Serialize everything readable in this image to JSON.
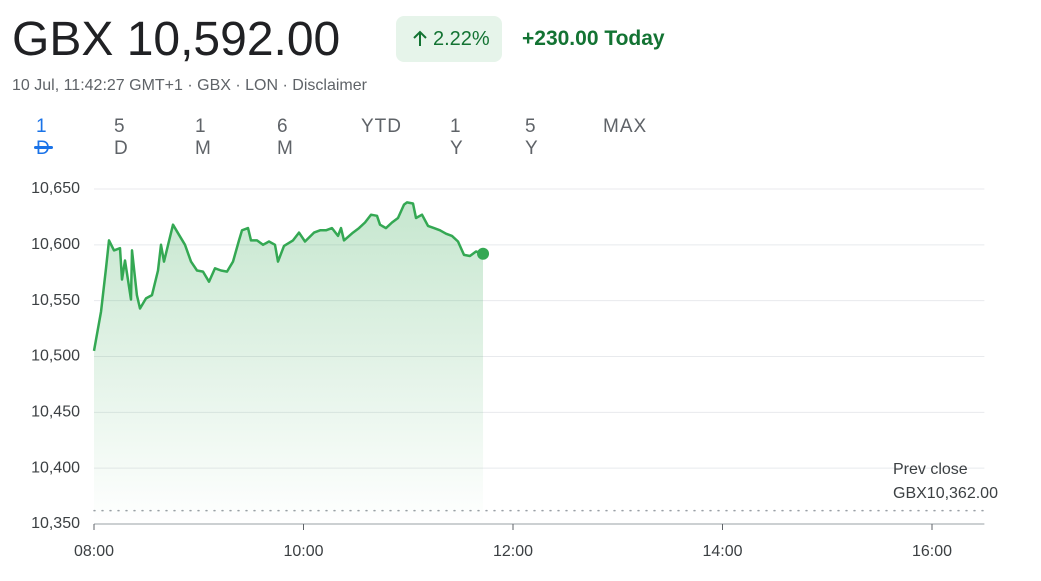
{
  "header": {
    "price": "GBX 10,592.00",
    "change_pct": "2.22%",
    "change_today": "+230.00 Today",
    "meta": [
      "10 Jul, 11:42:27 GMT+1",
      "GBX",
      "LON",
      "Disclaimer"
    ]
  },
  "tabs": {
    "items": [
      "1 D",
      "5 D",
      "1 M",
      "6 M",
      "YTD",
      "1 Y",
      "5 Y",
      "MAX"
    ],
    "active": 0
  },
  "chart_data": {
    "type": "line",
    "series": [
      {
        "color": "#34a853",
        "x": [
          8.0,
          8.067,
          8.115,
          8.143,
          8.191,
          8.248,
          8.267,
          8.296,
          8.353,
          8.363,
          8.41,
          8.439,
          8.496,
          8.554,
          8.611,
          8.64,
          8.668,
          8.754,
          8.811,
          8.869,
          8.926,
          8.983,
          9.041,
          9.098,
          9.155,
          9.212,
          9.27,
          9.327,
          9.384,
          9.413,
          9.47,
          9.499,
          9.556,
          9.613,
          9.671,
          9.728,
          9.757,
          9.814,
          9.9,
          9.957,
          10.014,
          10.1,
          10.158,
          10.215,
          10.272,
          10.329,
          10.358,
          10.387,
          10.473,
          10.53,
          10.587,
          10.644,
          10.702,
          10.73,
          10.788,
          10.845,
          10.902,
          10.959,
          10.988,
          11.045,
          11.074,
          11.131,
          11.189,
          11.246,
          11.303,
          11.36,
          11.418,
          11.475,
          11.532,
          11.589,
          11.647,
          11.714
        ],
        "values": [
          10505,
          10540,
          10579,
          10604,
          10595,
          10597,
          10569,
          10586,
          10551,
          10595,
          10555,
          10543,
          10552,
          10555,
          10577,
          10600,
          10585,
          10618,
          10609,
          10600,
          10585,
          10577,
          10576,
          10567,
          10579,
          10577,
          10576,
          10585,
          10604,
          10613,
          10615,
          10604,
          10604,
          10600,
          10603,
          10600,
          10585,
          10599,
          10604,
          10611,
          10603,
          10611,
          10613,
          10613,
          10615,
          10608,
          10615,
          10604,
          10611,
          10615,
          10620,
          10627,
          10626,
          10618,
          10615,
          10620,
          10624,
          10636,
          10638,
          10637,
          10624,
          10627,
          10617,
          10615,
          10613,
          10610,
          10608,
          10603,
          10591,
          10590,
          10594,
          10592
        ]
      }
    ],
    "reference": {
      "name": "Prev close",
      "value": 10362,
      "label": "GBX10,362.00"
    },
    "xlim": [
      8,
      16.5
    ],
    "xticks": [
      {
        "value": 8,
        "label": "08:00"
      },
      {
        "value": 10,
        "label": "10:00"
      },
      {
        "value": 12,
        "label": "12:00"
      },
      {
        "value": 14,
        "label": "14:00"
      },
      {
        "value": 16,
        "label": "16:00"
      }
    ],
    "ylim": [
      10350,
      10650
    ],
    "yticks": [
      {
        "value": 10350,
        "label": "10,350"
      },
      {
        "value": 10400,
        "label": "10,400"
      },
      {
        "value": 10450,
        "label": "10,450"
      },
      {
        "value": 10500,
        "label": "10,500"
      },
      {
        "value": 10550,
        "label": "10,550"
      },
      {
        "value": 10600,
        "label": "10,600"
      },
      {
        "value": 10650,
        "label": "10,650"
      }
    ],
    "grid": true
  }
}
